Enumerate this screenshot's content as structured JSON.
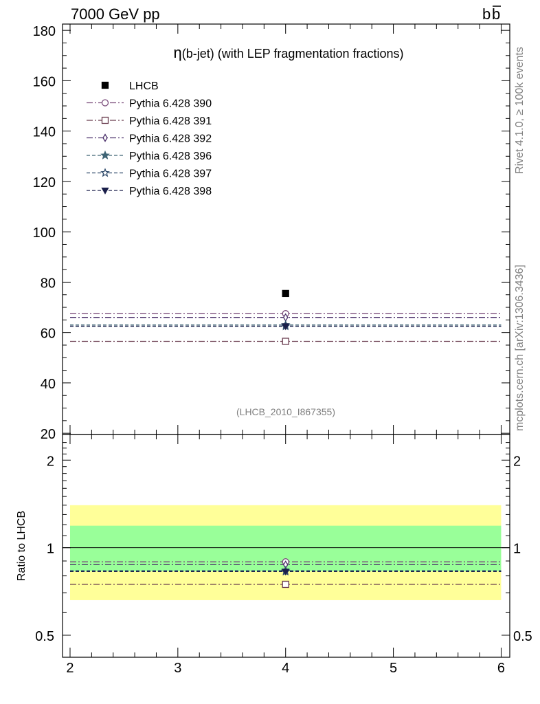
{
  "header": {
    "left": "7000 GeV pp",
    "right_base": "b",
    "right_bar": "b"
  },
  "side_labels": {
    "top": "Rivet 4.1.0, ≥ 100k events",
    "bottom": "mcplots.cern.ch [arXiv:1306.3436]"
  },
  "chart_data": [
    {
      "type": "scatter",
      "panel": "main",
      "title_symbol": "η",
      "title": "(b-jet) (with LEP fragmentation fractions)",
      "analysis_label": "(LHCB_2010_I867355)",
      "xlabel": "",
      "ylabel": "",
      "xlim": [
        1.93,
        6.08
      ],
      "ylim": [
        19.5,
        182.5
      ],
      "y_ticks": [
        20,
        40,
        60,
        80,
        100,
        120,
        140,
        160,
        180
      ],
      "legend_position": "top-left",
      "data": {
        "name": "LHCB",
        "x": [
          4
        ],
        "y": [
          75.5
        ],
        "color": "#000000",
        "marker": "square-filled"
      },
      "series": [
        {
          "name": "Pythia 6.428 390",
          "x": [
            2,
            6
          ],
          "y": [
            67.5,
            67.5
          ],
          "point": [
            4,
            67.5
          ],
          "color": "#7a4b7a",
          "marker": "circle-open",
          "dash": "dashdot"
        },
        {
          "name": "Pythia 6.428 391",
          "x": [
            2,
            6
          ],
          "y": [
            56.5,
            56.5
          ],
          "point": [
            4,
            56.5
          ],
          "color": "#6a3d4f",
          "marker": "square-open",
          "dash": "dashdot"
        },
        {
          "name": "Pythia 6.428 392",
          "x": [
            2,
            6
          ],
          "y": [
            66.0,
            66.0
          ],
          "point": [
            4,
            66.0
          ],
          "color": "#4a2f6a",
          "marker": "diamond-open",
          "dash": "dashdot"
        },
        {
          "name": "Pythia 6.428 396",
          "x": [
            2,
            6
          ],
          "y": [
            63.0,
            63.0
          ],
          "point": [
            4,
            63.0
          ],
          "color": "#3f6475",
          "marker": "star-filled",
          "dash": "dashed"
        },
        {
          "name": "Pythia 6.428 397",
          "x": [
            2,
            6
          ],
          "y": [
            62.5,
            62.5
          ],
          "point": [
            4,
            62.5
          ],
          "color": "#2f4a6a",
          "marker": "star-open",
          "dash": "dashed"
        },
        {
          "name": "Pythia 6.428 398",
          "x": [
            2,
            6
          ],
          "y": [
            62.5,
            62.5
          ],
          "point": [
            4,
            62.5
          ],
          "color": "#1a1f4a",
          "marker": "triangle-down-filled",
          "dash": "dashed"
        }
      ]
    },
    {
      "type": "line",
      "panel": "ratio",
      "ylabel": "Ratio to LHCB",
      "xlim": [
        1.93,
        6.08
      ],
      "ylim": [
        0.42,
        2.45
      ],
      "yscale": "log",
      "y_ticks": [
        0.5,
        1,
        2
      ],
      "x_ticks": [
        2,
        3,
        4,
        5,
        6
      ],
      "bands": [
        {
          "name": "yellow",
          "low": 0.66,
          "high": 1.4,
          "color": "#ffff99"
        },
        {
          "name": "green",
          "low": 0.83,
          "high": 1.19,
          "color": "#99ff99"
        }
      ],
      "reference": 1.0,
      "series": [
        {
          "name": "Pythia 6.428 390",
          "ratio": 0.894,
          "marker": "circle-open"
        },
        {
          "name": "Pythia 6.428 391",
          "ratio": 0.748,
          "marker": "square-open"
        },
        {
          "name": "Pythia 6.428 392",
          "ratio": 0.874,
          "marker": "diamond-open"
        },
        {
          "name": "Pythia 6.428 396",
          "ratio": 0.834,
          "marker": "star-filled"
        },
        {
          "name": "Pythia 6.428 397",
          "ratio": 0.828,
          "marker": "star-open"
        },
        {
          "name": "Pythia 6.428 398",
          "ratio": 0.828,
          "marker": "triangle-down-filled"
        }
      ]
    }
  ]
}
